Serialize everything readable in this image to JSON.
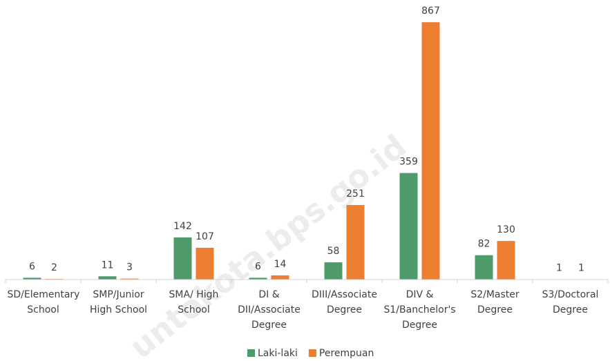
{
  "chart_data": {
    "type": "bar",
    "categories": [
      "SD/Elementary School",
      "SMP/Junior High School",
      "SMA/ High School",
      "DI & DII/Associate Degree",
      "DIII/Associate Degree",
      "DIV & S1/Banchelor's Degree",
      "S2/Master Degree",
      "S3/Doctoral Degree"
    ],
    "series": [
      {
        "name": "Laki-laki",
        "color": "#4e9a6b",
        "values": [
          6,
          11,
          142,
          6,
          58,
          359,
          82,
          1
        ]
      },
      {
        "name": "Perempuan",
        "color": "#ed7d31",
        "values": [
          2,
          3,
          107,
          14,
          251,
          867,
          130,
          1
        ]
      }
    ],
    "ylim": [
      0,
      900
    ],
    "watermark": "untokota.bps.go.id"
  }
}
